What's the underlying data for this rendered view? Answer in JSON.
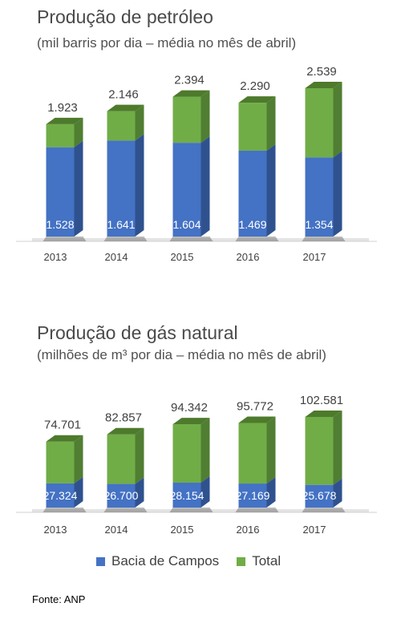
{
  "chart_data": [
    {
      "type": "bar",
      "title": "Produção de petróleo",
      "subtitle": "(mil barris por dia – média no mês de abril)",
      "categories": [
        "2013",
        "2014",
        "2015",
        "2016",
        "2017"
      ],
      "series": [
        {
          "name": "Bacia de Campos",
          "values": [
            1528,
            1641,
            1604,
            1469,
            1354
          ],
          "labels": [
            "1.528",
            "1.641",
            "1.604",
            "1.469",
            "1.354"
          ]
        },
        {
          "name": "Total",
          "values": [
            1923,
            2146,
            2394,
            2290,
            2539
          ],
          "labels": [
            "1.923",
            "2.146",
            "2.394",
            "2.290",
            "2.539"
          ]
        }
      ],
      "ylim": [
        0,
        2539
      ],
      "grid": false
    },
    {
      "type": "bar",
      "title": "Produção de gás natural",
      "subtitle": "(milhões de m³ por dia – média no mês de abril)",
      "categories": [
        "2013",
        "2014",
        "2015",
        "2016",
        "2017"
      ],
      "series": [
        {
          "name": "Bacia de Campos",
          "values": [
            27324,
            26700,
            28154,
            27169,
            25678
          ],
          "labels": [
            "27.324",
            "26.700",
            "28.154",
            "27.169",
            "25.678"
          ]
        },
        {
          "name": "Total",
          "values": [
            74701,
            82857,
            94342,
            95772,
            102581
          ],
          "labels": [
            "74.701",
            "82.857",
            "94.342",
            "95.772",
            "102.581"
          ]
        }
      ],
      "ylim": [
        0,
        102581
      ],
      "grid": false
    }
  ],
  "legend": [
    {
      "label": "Bacia de Campos",
      "color": "#4472c4"
    },
    {
      "label": "Total",
      "color": "#70ad47"
    }
  ],
  "colors": {
    "blue_front": "#4472c4",
    "blue_side": "#2f528f",
    "blue_top": "#5b84d0",
    "green_front": "#70ad47",
    "green_side": "#507e32",
    "green_top": "#4e7a2c"
  },
  "source": "Fonte: ANP"
}
